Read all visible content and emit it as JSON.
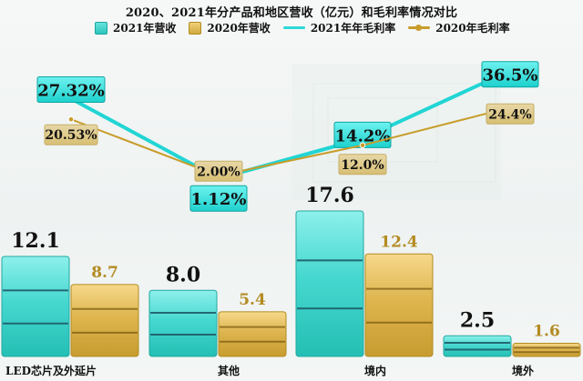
{
  "chart_data": {
    "type": "bar",
    "title": "2020、2021年分产品和地区营收（亿元）和毛利率情况对比",
    "categories": [
      "LED芯片及外延片",
      "其他",
      "境内",
      "境外"
    ],
    "series": [
      {
        "name": "2021年营收",
        "values": [
          12.1,
          8.0,
          17.6,
          2.5
        ],
        "color": "#34d3c9"
      },
      {
        "name": "2020年营收",
        "values": [
          8.7,
          5.4,
          12.4,
          1.6
        ],
        "color": "#d8b24a"
      }
    ],
    "line_series": [
      {
        "name": "2021年年毛利率",
        "values": [
          27.32,
          1.12,
          14.2,
          36.5
        ],
        "labels": [
          "27.32%",
          "1.12%",
          "14.2%",
          "36.5%"
        ],
        "color": "#27d7d7"
      },
      {
        "name": "2020年毛利率",
        "values": [
          20.53,
          2.0,
          12.0,
          24.4
        ],
        "labels": [
          "20.53%",
          "2.00%",
          "12.0%",
          "24.4%"
        ],
        "color": "#c89d2b"
      }
    ],
    "bar_labels": {
      "2021": [
        "12.1",
        "8.0",
        "17.6",
        "2.5"
      ],
      "2020": [
        "8.7",
        "5.4",
        "12.4",
        "1.6"
      ]
    },
    "y_range_bars": [
      0,
      20
    ],
    "y_range_lines": [
      0,
      40
    ],
    "grid": false,
    "legend_position": "top"
  }
}
